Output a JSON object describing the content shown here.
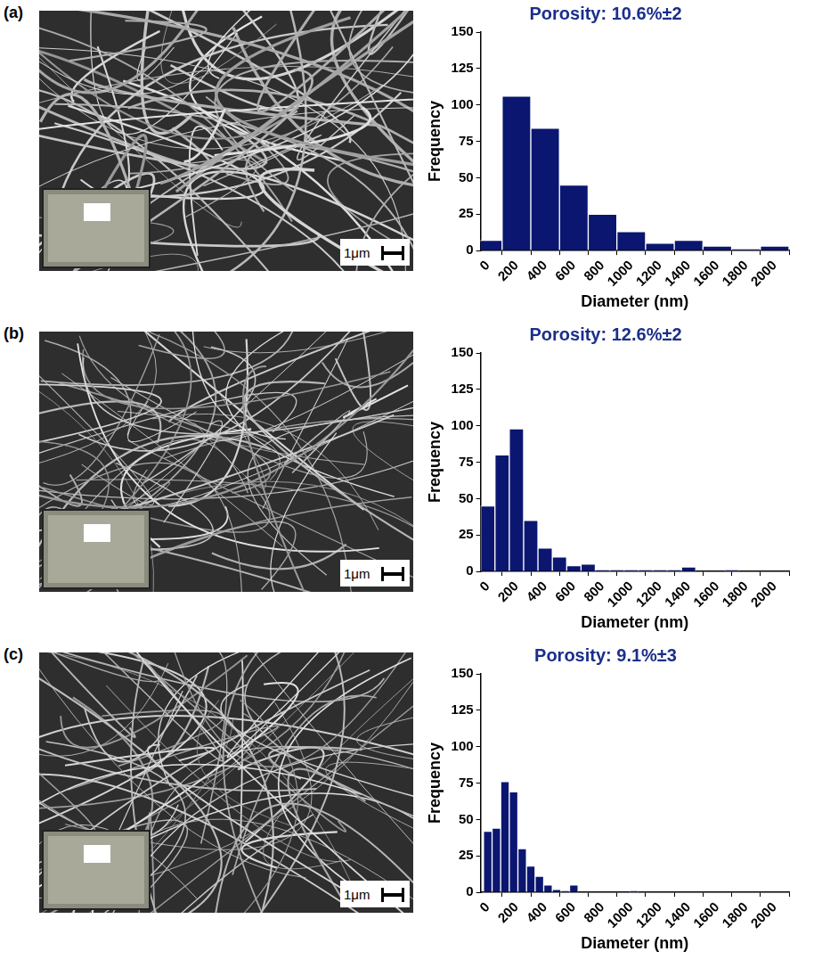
{
  "chart_data": [
    {
      "type": "histogram",
      "title": "Porosity: 10.6%±2",
      "x_label": "Diameter (nm)",
      "y_label": "Frequency",
      "bins": [
        -100,
        100,
        300,
        500,
        700,
        900,
        1100,
        1300,
        1500,
        1700,
        1900,
        2100
      ],
      "values": [
        7,
        106,
        84,
        45,
        25,
        13,
        5,
        7,
        3,
        1,
        3
      ],
      "color": "#0b1670",
      "xlim": [
        -50,
        2100
      ],
      "xticks": [
        0,
        200,
        400,
        600,
        800,
        1000,
        1200,
        1400,
        1600,
        1800,
        2000
      ],
      "ylim": [
        0,
        150
      ],
      "yticks": [
        0,
        25,
        50,
        75,
        100,
        125,
        150
      ],
      "grid": false
    },
    {
      "type": "histogram",
      "title": "Porosity: 12.6%±2",
      "x_label": "Diameter (nm)",
      "y_label": "Frequency",
      "bins": [
        -50,
        50,
        150,
        250,
        350,
        450,
        550,
        650,
        750,
        850,
        950,
        1050,
        1150,
        1250,
        1350,
        1450,
        1550,
        1650,
        1750,
        1850
      ],
      "values": [
        45,
        80,
        98,
        35,
        16,
        10,
        4,
        5,
        1,
        1,
        1,
        1,
        1,
        1,
        3,
        0,
        0,
        1,
        0
      ],
      "color": "#0b1670",
      "xlim": [
        -50,
        2100
      ],
      "xticks": [
        0,
        200,
        400,
        600,
        800,
        1000,
        1200,
        1400,
        1600,
        1800,
        2000
      ],
      "ylim": [
        0,
        150
      ],
      "yticks": [
        0,
        25,
        50,
        75,
        100,
        125,
        150
      ],
      "grid": false
    },
    {
      "type": "histogram",
      "title": "Porosity: 9.1%±3",
      "x_label": "Diameter (nm)",
      "y_label": "Frequency",
      "bins": [
        -30,
        30,
        90,
        150,
        210,
        270,
        330,
        390,
        450,
        510,
        570,
        630,
        690,
        750,
        810,
        870,
        930,
        990,
        1050
      ],
      "values": [
        42,
        44,
        76,
        69,
        30,
        18,
        11,
        5,
        2,
        1,
        5,
        0,
        0,
        0,
        0,
        0,
        0,
        1
      ],
      "color": "#0b1670",
      "xlim": [
        -50,
        2100
      ],
      "xticks": [
        0,
        200,
        400,
        600,
        800,
        1000,
        1200,
        1400,
        1600,
        1800,
        2000
      ],
      "ylim": [
        0,
        150
      ],
      "yticks": [
        0,
        25,
        50,
        75,
        100,
        125,
        150
      ],
      "grid": false
    }
  ],
  "images": [
    {
      "panel": "(a)",
      "scale_bar": "1μm"
    },
    {
      "panel": "(b)",
      "scale_bar": "1μm"
    },
    {
      "panel": "(c)",
      "scale_bar": "1μm"
    }
  ]
}
